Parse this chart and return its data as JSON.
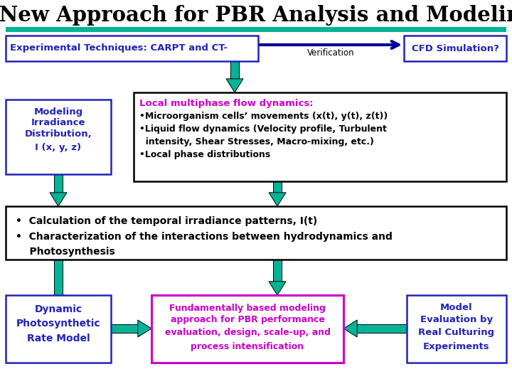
{
  "title": "A New Approach for PBR Analysis and Modeling",
  "background_color": "#ffffff",
  "teal": "#00B496",
  "blue_text": "#2222BB",
  "magenta_text": "#CC00CC",
  "black_text": "#000000",
  "box_exp_label": "Experimental Techniques: CARPT and CT-",
  "box_cfd_label": "CFD Simulation?",
  "verification_label": "Verification",
  "box_local_title": "Local multiphase flow dynamics:",
  "box_local_bullets": [
    "•Microorganism cells’ movements (x(t), y(t), z(t))",
    "•Liquid flow dynamics (Velocity profile, Turbulent",
    "  intensity, Shear Stresses, Macro-mixing, etc.)",
    "•Local phase distributions"
  ],
  "box_modeling_label": [
    "Modeling",
    "Irradiance",
    "Distribution,",
    "I (x, y, z)"
  ],
  "box_calc_line1": "•  Calculation of the temporal irradiance patterns, I(t)",
  "box_calc_line2": "•  Characterization of the interactions between hydrodynamics and",
  "box_calc_line3": "    Photosynthesis",
  "box_dynamic_label": [
    "Dynamic",
    "Photosynthetic",
    "Rate Model"
  ],
  "box_fund_label": [
    "Fundamentally based modeling",
    "approach for PBR performance",
    "evaluation, design, scale-up, and",
    "process intensification"
  ],
  "box_model_eval_label": [
    "Model",
    "Evaluation by",
    "Real Culturing",
    "Experiments"
  ]
}
